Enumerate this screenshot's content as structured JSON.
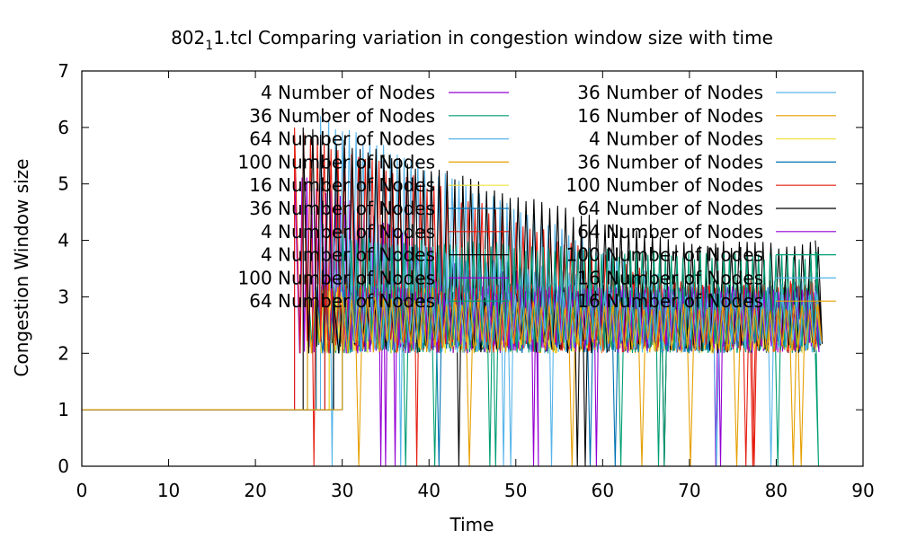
{
  "chart_data": {
    "type": "line",
    "title_parts": {
      "prefix": "802",
      "subscript": "1",
      "suffix": "1.tcl Comparing variation in congestion window size with time"
    },
    "xlabel": "Time",
    "ylabel": "Congestion Window size",
    "xlim": [
      0,
      90
    ],
    "ylim": [
      0,
      7
    ],
    "x_ticks": [
      "0",
      "10",
      "20",
      "30",
      "40",
      "50",
      "60",
      "70",
      "80",
      "90"
    ],
    "y_ticks": [
      "0",
      "1",
      "2",
      "3",
      "4",
      "5",
      "6",
      "7"
    ],
    "grid": false,
    "legend_position": "top, two columns",
    "series": [
      {
        "name": "4 Number of Nodes",
        "color": "#9400d3",
        "start": 24.5,
        "end": 52.5,
        "peak": 5.25,
        "low": 2.0,
        "tail": 3.5,
        "dips": [
          34.5,
          36.0,
          52.0
        ]
      },
      {
        "name": "36 Number of Nodes",
        "color": "#009e73",
        "start": 26.0,
        "end": 84.5,
        "peak": 3.3,
        "low": 2.0,
        "tail": 2.0,
        "dips": [
          37.0,
          40.5,
          62.0,
          80.0,
          84.5
        ]
      },
      {
        "name": "64 Number of Nodes",
        "color": "#56b4e9",
        "start": 27.5,
        "end": 84.5,
        "peak": 6.2,
        "low": 2.0,
        "tail": 3.3,
        "dips": [
          28.0,
          36.5,
          48.0,
          54.0,
          79.0
        ]
      },
      {
        "name": "100 Number of Nodes",
        "color": "#e69f00",
        "start": 26.0,
        "end": 84.0,
        "peak": 3.2,
        "low": 2.0,
        "tail": 2.9,
        "dips": [
          31.5,
          44.5,
          56.0,
          70.0,
          82.0
        ]
      },
      {
        "name": "16 Number of Nodes",
        "color": "#f0e442",
        "start": 27.0,
        "end": 76.0,
        "peak": 3.2,
        "low": 2.0,
        "tail": 2.5,
        "dips": []
      },
      {
        "name": "36 Number of Nodes",
        "color": "#0072b2",
        "start": 27.0,
        "end": 84.0,
        "peak": 3.2,
        "low": 2.0,
        "tail": 2.4,
        "dips": [
          41.0,
          58.0
        ]
      },
      {
        "name": "4 Number of Nodes",
        "color": "#e51e10",
        "start": 24.5,
        "end": 84.5,
        "peak": 6.0,
        "low": 2.0,
        "tail": 3.3,
        "dips": [
          26.5,
          38.5,
          76.5
        ]
      },
      {
        "name": "4 Number of Nodes",
        "color": "#000000",
        "start": 25.5,
        "end": 84.5,
        "peak": 6.0,
        "low": 2.0,
        "tail": 4.0,
        "dips": [
          43.0,
          57.0,
          67.0
        ]
      },
      {
        "name": "100 Number of Nodes",
        "color": "#9400d3",
        "start": 28.0,
        "end": 84.5,
        "peak": 3.3,
        "low": 2.0,
        "tail": 3.2,
        "dips": [
          59.0,
          73.0
        ]
      },
      {
        "name": "64 Number of Nodes",
        "color": "#009e73",
        "start": 29.0,
        "end": 84.5,
        "peak": 3.3,
        "low": 2.0,
        "tail": 3.2,
        "dips": [
          47.0,
          66.5
        ]
      },
      {
        "name": "36 Number of Nodes",
        "color": "#56b4e9",
        "start": 29.0,
        "end": 84.5,
        "peak": 4.2,
        "low": 2.0,
        "tail": 3.1,
        "dips": [
          49.0,
          72.5
        ]
      },
      {
        "name": "16 Number of Nodes",
        "color": "#e69f00",
        "start": 28.5,
        "end": 84.5,
        "peak": 3.3,
        "low": 2.0,
        "tail": 2.9,
        "dips": [
          64.0,
          75.0
        ]
      },
      {
        "name": "4 Number of Nodes",
        "color": "#f0e442",
        "start": 28.5,
        "end": 84.5,
        "peak": 3.1,
        "low": 2.0,
        "tail": 2.5,
        "dips": []
      },
      {
        "name": "36 Number of Nodes",
        "color": "#0072b2",
        "start": 28.0,
        "end": 84.5,
        "peak": 3.2,
        "low": 2.0,
        "tail": 2.4,
        "dips": [
          61.0
        ]
      },
      {
        "name": "100 Number of Nodes",
        "color": "#e51e10",
        "start": 28.0,
        "end": 84.5,
        "peak": 3.2,
        "low": 2.0,
        "tail": 3.3,
        "dips": [
          77.0
        ]
      },
      {
        "name": "64 Number of Nodes",
        "color": "#000000",
        "start": 29.0,
        "end": 84.5,
        "peak": 3.0,
        "low": 2.0,
        "tail": 3.3,
        "dips": []
      },
      {
        "name": "64 Number of Nodes",
        "color": "#9400d3",
        "start": 30.0,
        "end": 84.5,
        "peak": 3.2,
        "low": 2.0,
        "tail": 3.2,
        "dips": []
      },
      {
        "name": "100 Number of Nodes",
        "color": "#009e73",
        "start": 30.0,
        "end": 84.5,
        "peak": 4.1,
        "low": 2.0,
        "tail": 3.8,
        "dips": []
      },
      {
        "name": "16 Number of Nodes",
        "color": "#56b4e9",
        "start": 30.0,
        "end": 84.5,
        "peak": 3.1,
        "low": 2.0,
        "tail": 3.1,
        "dips": []
      },
      {
        "name": "16 Number of Nodes",
        "color": "#e69f00",
        "start": 30.0,
        "end": 84.5,
        "peak": 3.0,
        "low": 2.0,
        "tail": 2.9,
        "dips": []
      }
    ]
  }
}
